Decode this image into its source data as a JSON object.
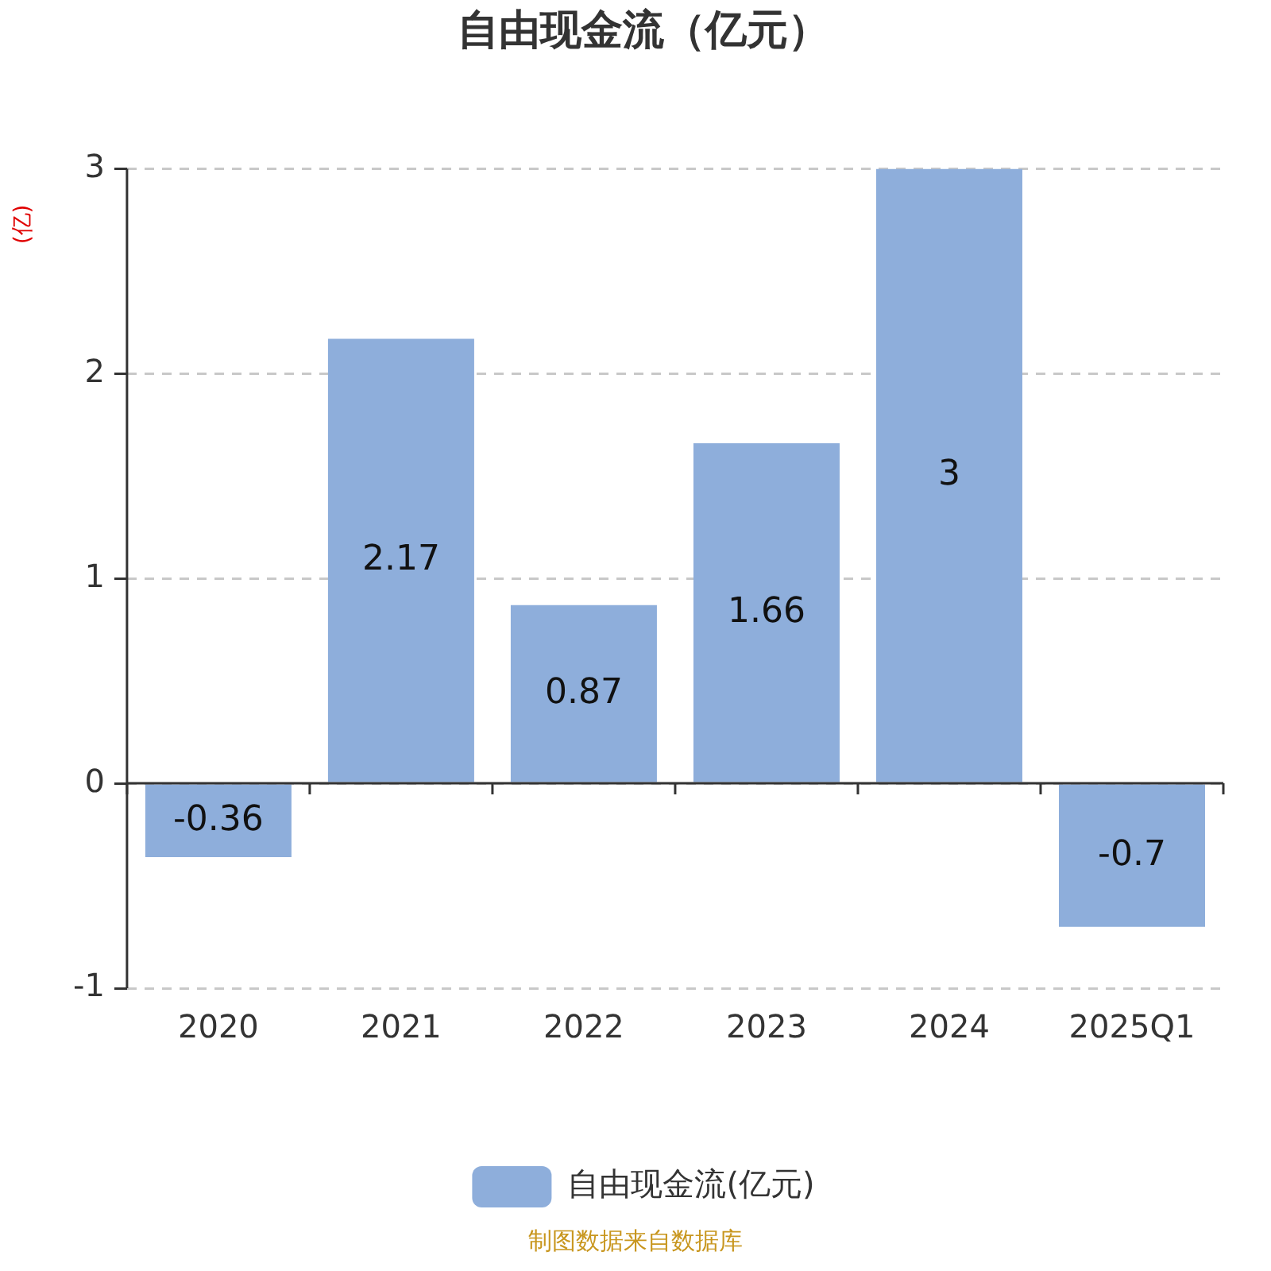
{
  "chart_data": {
    "type": "bar",
    "title": "自由现金流（亿元）",
    "ylabel": "(亿)",
    "categories": [
      "2020",
      "2021",
      "2022",
      "2023",
      "2024",
      "2025Q1"
    ],
    "series": [
      {
        "name": "自由现金流(亿元)",
        "color": "#8eaedb",
        "values": [
          -0.36,
          2.17,
          0.87,
          1.66,
          3,
          -0.7
        ]
      }
    ],
    "ylim": [
      -1,
      3
    ],
    "yticks": [
      -1,
      0,
      1,
      2,
      3
    ],
    "grid": "y",
    "legend": "bottom",
    "data_labels": true,
    "annotations": [
      "制图数据来自数据库"
    ]
  }
}
